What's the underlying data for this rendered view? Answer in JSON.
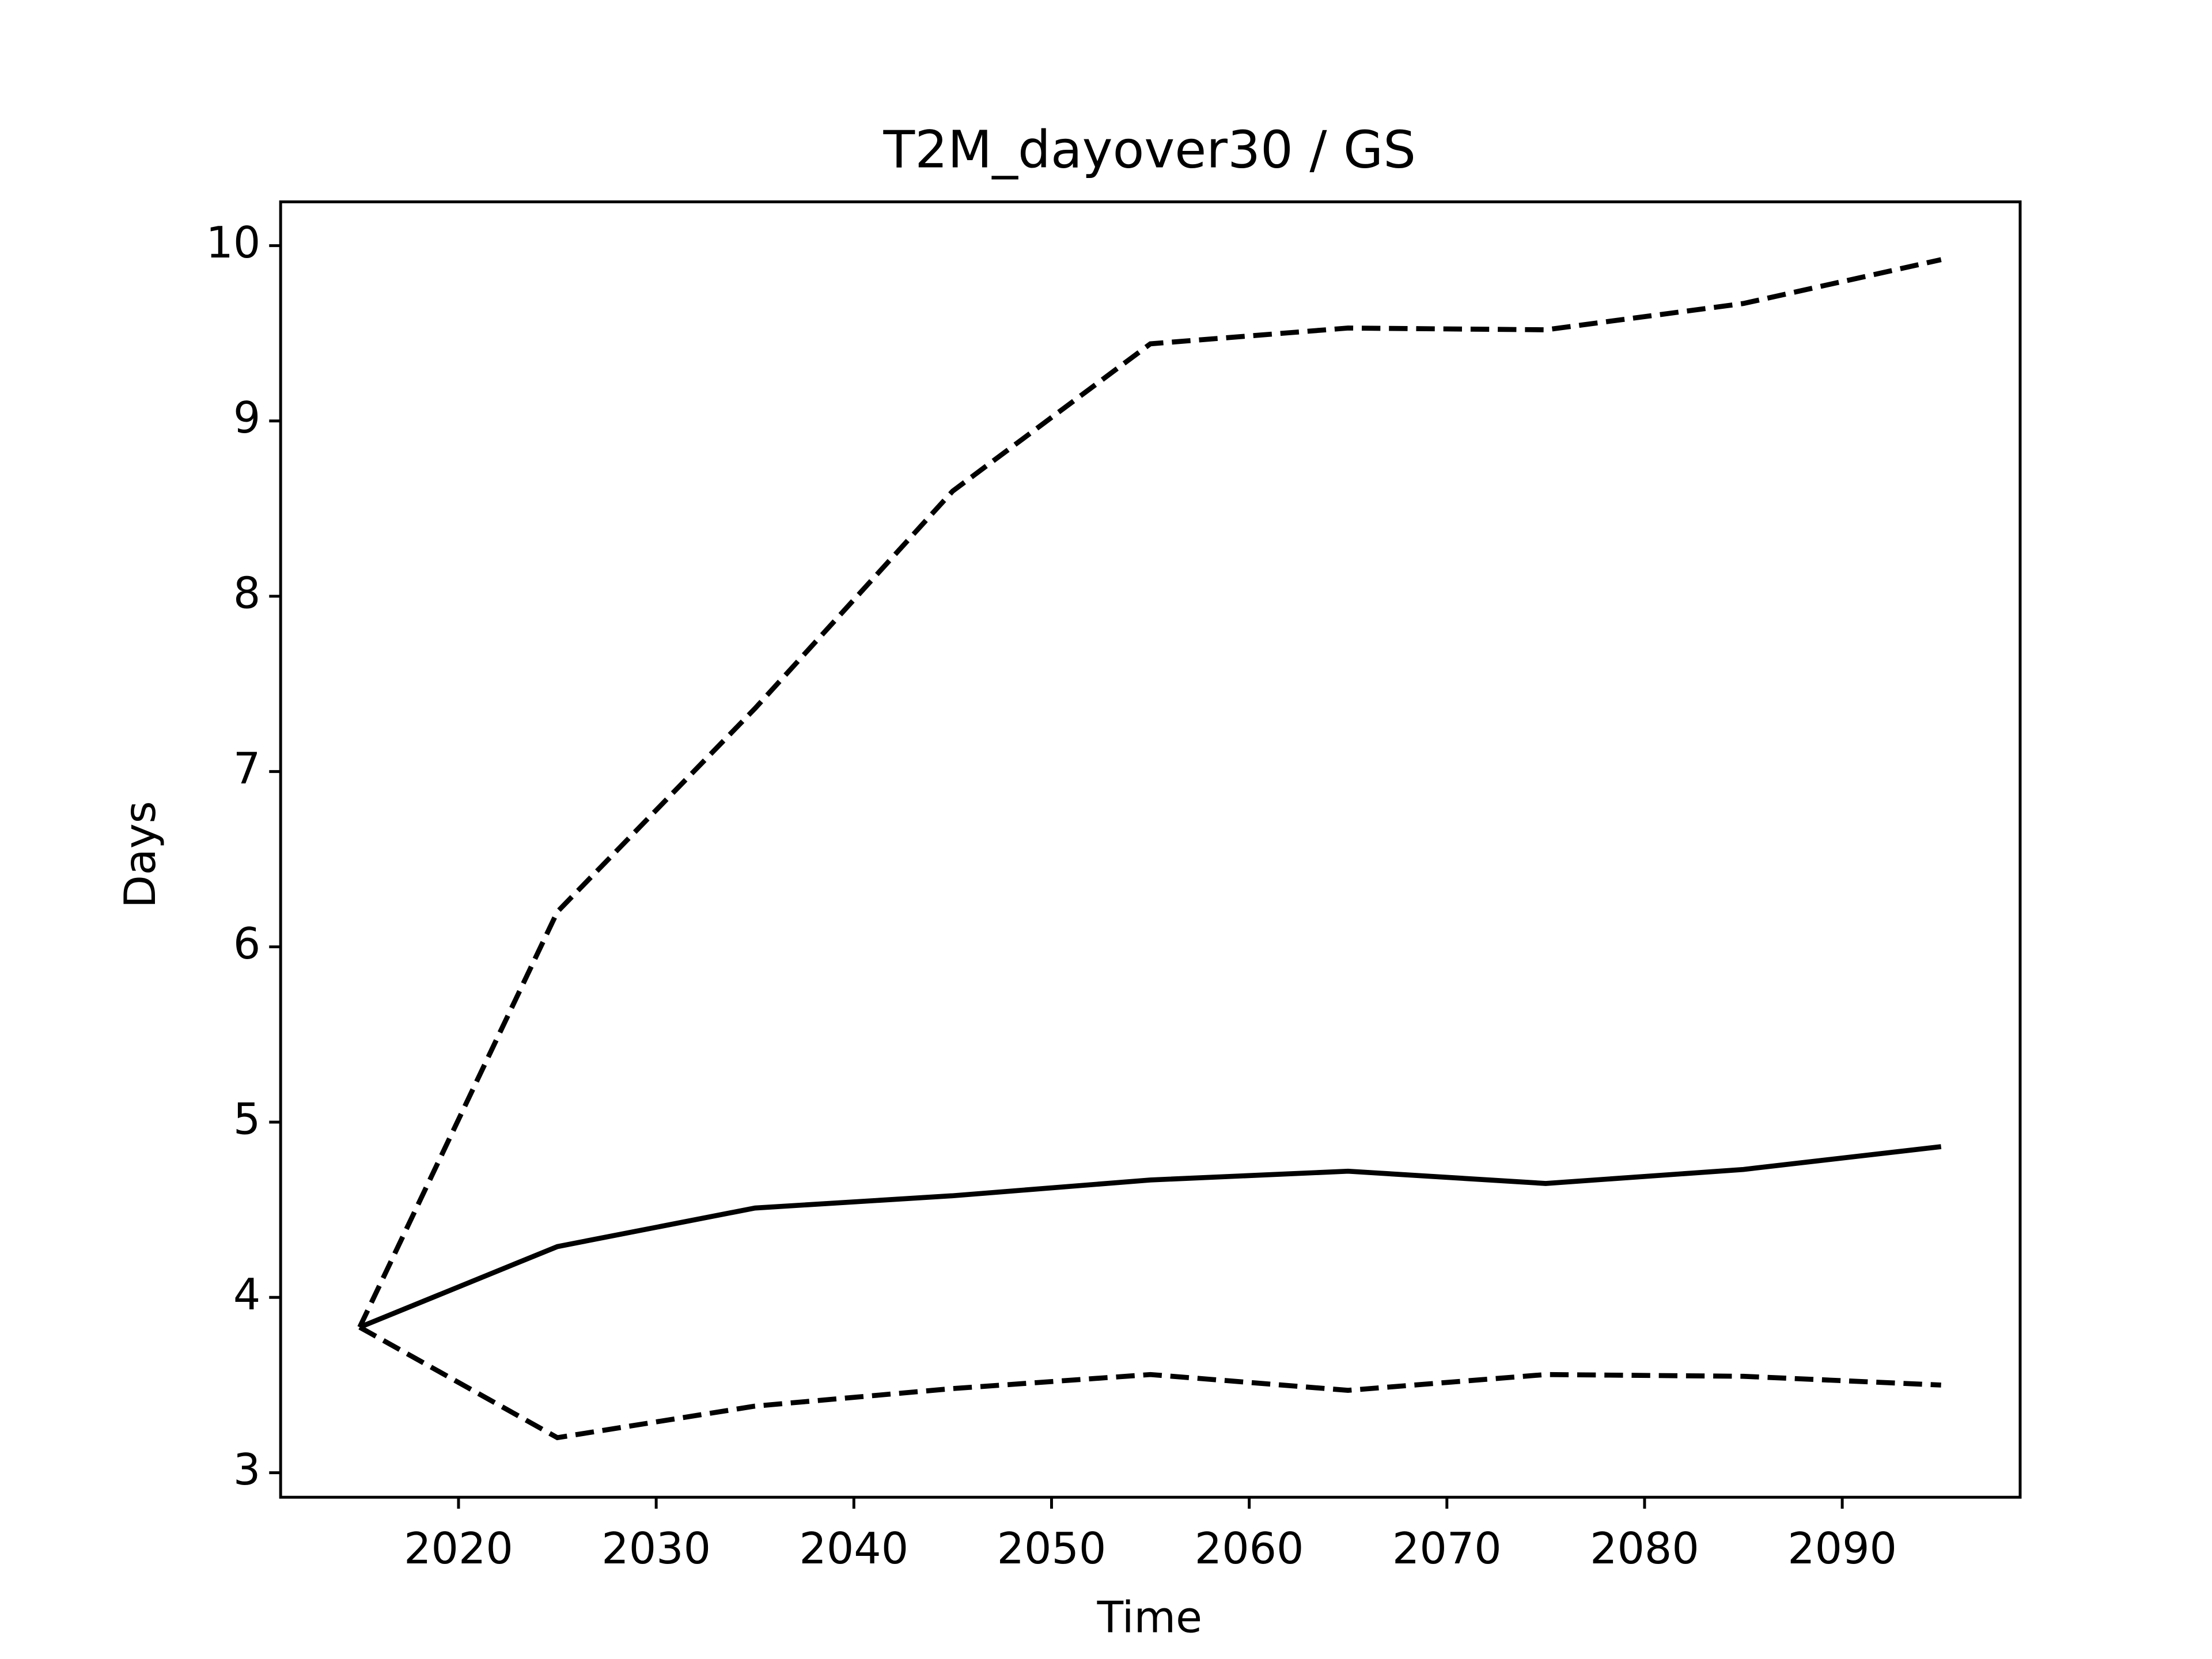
{
  "chart_data": {
    "type": "line",
    "title": "T2M_dayover30 / GS",
    "x_label": "Time",
    "y_label": "Days",
    "x": [
      2015,
      2025,
      2035,
      2045,
      2055,
      2065,
      2075,
      2085,
      2095
    ],
    "series": [
      {
        "color": "#000000",
        "linestyle": "solid",
        "values": [
          3.83,
          4.29,
          4.51,
          4.58,
          4.67,
          4.72,
          4.65,
          4.73,
          4.86
        ]
      },
      {
        "color": "#000000",
        "linestyle": "dashed",
        "values": [
          3.83,
          6.2,
          7.36,
          8.6,
          9.44,
          9.53,
          9.52,
          9.67,
          9.92
        ]
      },
      {
        "color": "#000000",
        "linestyle": "dashed",
        "values": [
          3.83,
          3.2,
          3.38,
          3.48,
          3.56,
          3.47,
          3.56,
          3.55,
          3.5
        ]
      }
    ],
    "xlim": [
      2011,
      2099
    ],
    "xticks": [
      2020,
      2030,
      2040,
      2050,
      2060,
      2070,
      2080,
      2090
    ],
    "ylim": [
      2.86,
      10.25
    ],
    "yticks": [
      3,
      4,
      5,
      6,
      7,
      8,
      9,
      10
    ],
    "grid": false
  }
}
